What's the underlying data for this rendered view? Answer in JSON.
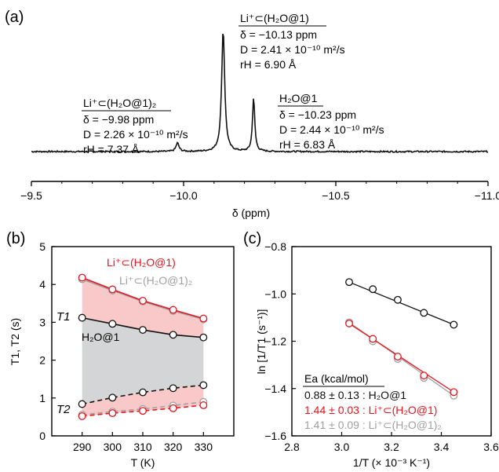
{
  "panels": {
    "a": {
      "letter": "(a)",
      "xlabel": "δ (ppm)",
      "xlim": [
        -9.5,
        -11.0
      ],
      "xticks": [
        -9.5,
        -10.0,
        -10.5,
        -11.0
      ],
      "xtick_labels": [
        "−9.5",
        "−10.0",
        "−10.5",
        "−11.0"
      ],
      "peaks": [
        {
          "delta": -9.98,
          "height": 0.07,
          "width": 0.006
        },
        {
          "delta": -10.13,
          "height": 1.0,
          "width": 0.006
        },
        {
          "delta": -10.23,
          "height": 0.44,
          "width": 0.0045
        }
      ],
      "annotations": [
        {
          "species": "Li⁺⊂(H₂O@1)₂",
          "delta": "δ = −9.98 ppm",
          "D": "D = 2.26 × 10⁻¹⁰ m²/s",
          "rH": "rH = 7.37 Å"
        },
        {
          "species": "Li⁺⊂(H₂O@1)",
          "delta": "δ = −10.13 ppm",
          "D": "D = 2.41 × 10⁻¹⁰ m²/s",
          "rH": "rH = 6.90 Å"
        },
        {
          "species": "H₂O@1",
          "delta": "δ = −10.23 ppm",
          "D": "D = 2.44 × 10⁻¹⁰ m²/s",
          "rH": "rH = 6.83 Å"
        }
      ]
    },
    "b": {
      "letter": "(b)",
      "xlabel": "T (K)",
      "ylabel": "T1, T2 (s)",
      "xlim": [
        280,
        340
      ],
      "ylim": [
        0,
        5
      ],
      "xticks": [
        290,
        300,
        310,
        320,
        330
      ],
      "yticks": [
        0,
        1,
        2,
        3,
        4,
        5
      ],
      "label_T1": "T1",
      "label_T2": "T2",
      "legend": [
        "Li⁺⊂(H₂O@1)",
        "Li⁺⊂(H₂O@1)₂",
        "H₂O@1"
      ]
    },
    "c": {
      "letter": "(c)",
      "xlabel": "1/T (× 10⁻³ K⁻¹)",
      "ylabel": "ln [1/T1 (s⁻¹)]",
      "xlim": [
        2.8,
        3.6
      ],
      "ylim": [
        -1.6,
        -0.8
      ],
      "xticks": [
        2.8,
        3.0,
        3.2,
        3.4,
        3.6
      ],
      "yticks": [
        -1.6,
        -1.4,
        -1.2,
        -1.0,
        -0.8
      ],
      "ea_header": "Ea (kcal/mol)",
      "ea_rows": [
        {
          "text": "0.88 ± 0.13 : H₂O@1",
          "color": "#111111"
        },
        {
          "text": "1.44 ± 0.03 : Li⁺⊂(H₂O@1)",
          "color": "#e8141e"
        },
        {
          "text": "1.41 ± 0.09 : Li⁺⊂(H₂O@1)₂",
          "color": "#a0a0a0"
        }
      ]
    }
  },
  "colors": {
    "red": "#e8141e",
    "gray": "#a0a0a0",
    "black": "#111111",
    "redfill": "#f9c9c9",
    "grayfill": "#d4d5d6"
  },
  "chart_data": [
    {
      "type": "line",
      "xlabel": "δ (ppm)",
      "xlim": [
        -9.5,
        -11.0
      ],
      "series": [
        {
          "name": "Li⁺⊂(H₂O@1)₂",
          "x": [
            -9.98
          ],
          "values": [
            0.07
          ]
        },
        {
          "name": "Li⁺⊂(H₂O@1)",
          "x": [
            -10.13
          ],
          "values": [
            1.0
          ]
        },
        {
          "name": "H₂O@1",
          "x": [
            -10.23
          ],
          "values": [
            0.44
          ]
        }
      ]
    },
    {
      "type": "line",
      "x": [
        290,
        300,
        310,
        320,
        330
      ],
      "xlabel": "T (K)",
      "ylabel": "T1, T2 (s)",
      "xlim": [
        280,
        340
      ],
      "ylim": [
        0,
        5
      ],
      "series": [
        {
          "name": "Li⁺⊂(H₂O@1)",
          "color": "#e8141e",
          "dash": false,
          "values": [
            4.18,
            3.87,
            3.57,
            3.33,
            3.1
          ]
        },
        {
          "name": "Li⁺⊂(H₂O@1)₂",
          "color": "#a0a0a0",
          "dash": false,
          "values": [
            4.14,
            3.84,
            3.55,
            3.3,
            3.08
          ]
        },
        {
          "name": "H₂O@1",
          "color": "#111111",
          "dash": false,
          "values": [
            3.12,
            2.96,
            2.8,
            2.67,
            2.6
          ]
        },
        {
          "name": "Li⁺⊂(H₂O@1)",
          "color": "#e8141e",
          "dash": true,
          "values": [
            0.52,
            0.6,
            0.66,
            0.73,
            0.81
          ]
        },
        {
          "name": "Li⁺⊂(H₂O@1)₂",
          "color": "#a0a0a0",
          "dash": true,
          "values": [
            0.56,
            0.64,
            0.71,
            0.8,
            0.9
          ]
        },
        {
          "name": "H₂O@1",
          "color": "#111111",
          "dash": true,
          "values": [
            0.84,
            1.01,
            1.15,
            1.26,
            1.34
          ]
        }
      ]
    },
    {
      "type": "scatter",
      "xlabel": "1/T (× 10⁻³ K⁻¹)",
      "ylabel": "ln [1/T1 (s⁻¹)]",
      "xlim": [
        2.8,
        3.6
      ],
      "ylim": [
        -1.6,
        -0.8
      ],
      "series": [
        {
          "name": "H₂O@1",
          "color": "#111111",
          "x": [
            3.03,
            3.125,
            3.225,
            3.33,
            3.45
          ],
          "values": [
            -0.95,
            -0.98,
            -1.025,
            -1.08,
            -1.13
          ]
        },
        {
          "name": "Li⁺⊂(H₂O@1)",
          "color": "#e8141e",
          "x": [
            3.03,
            3.125,
            3.225,
            3.33,
            3.45
          ],
          "values": [
            -1.125,
            -1.19,
            -1.265,
            -1.345,
            -1.415
          ]
        },
        {
          "name": "Li⁺⊂(H₂O@1)₂",
          "color": "#a0a0a0",
          "x": [
            3.03,
            3.125,
            3.225,
            3.33,
            3.45
          ],
          "values": [
            -1.12,
            -1.2,
            -1.275,
            -1.355,
            -1.43
          ]
        }
      ]
    }
  ]
}
